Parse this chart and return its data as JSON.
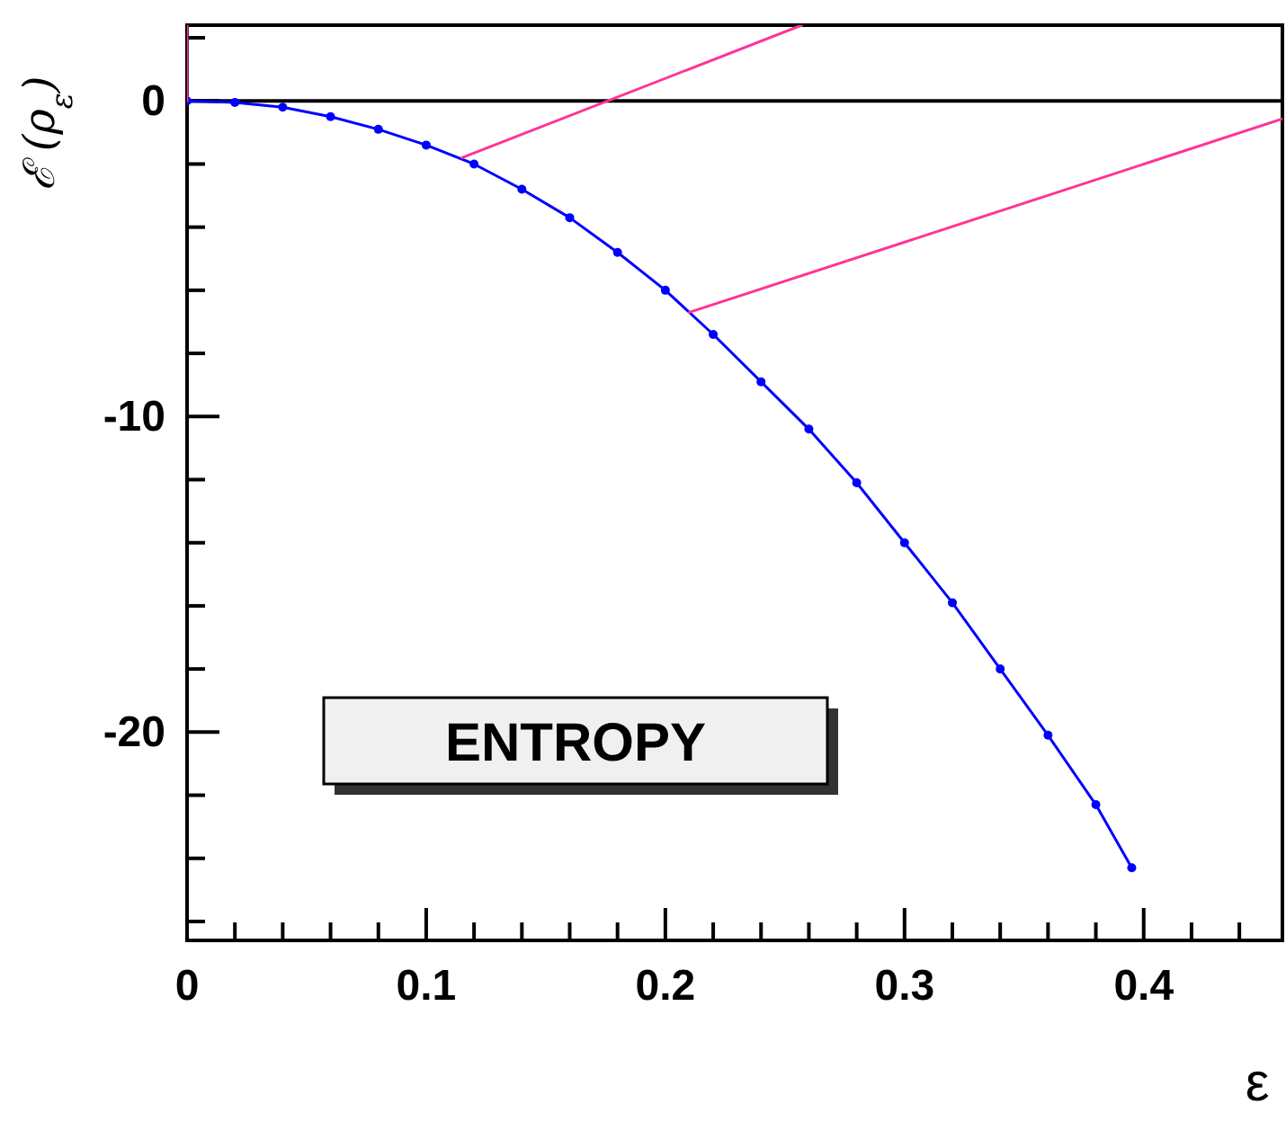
{
  "chart_data": {
    "type": "line",
    "xlabel": "ε",
    "ylabel": "ℰ (ρ$_{ε}$)",
    "annotations": [
      {
        "text": "ENTROPY"
      }
    ],
    "xlim": [
      0,
      0.458
    ],
    "ylim": [
      -26.6,
      2.4
    ],
    "xticks": [
      0,
      {
        "value": 0.02,
        "label": null
      },
      {
        "value": 0.04,
        "label": null
      },
      {
        "value": 0.06,
        "label": null
      },
      {
        "value": 0.08,
        "label": null
      },
      0.1,
      {
        "value": 0.12,
        "label": null
      },
      {
        "value": 0.14,
        "label": null
      },
      {
        "value": 0.16,
        "label": null
      },
      {
        "value": 0.18,
        "label": null
      },
      0.2,
      {
        "value": 0.22,
        "label": null
      },
      {
        "value": 0.24,
        "label": null
      },
      {
        "value": 0.26,
        "label": null
      },
      {
        "value": 0.28,
        "label": null
      },
      0.3,
      {
        "value": 0.32,
        "label": null
      },
      {
        "value": 0.34,
        "label": null
      },
      {
        "value": 0.36,
        "label": null
      },
      {
        "value": 0.38,
        "label": null
      },
      0.4,
      {
        "value": 0.42,
        "label": null
      },
      {
        "value": 0.44,
        "label": null
      }
    ],
    "yticks": [
      {
        "value": -26,
        "label": null
      },
      {
        "value": -24,
        "label": null
      },
      {
        "value": -22,
        "label": null
      },
      -20,
      {
        "value": -18,
        "label": null
      },
      {
        "value": -16,
        "label": null
      },
      {
        "value": -14,
        "label": null
      },
      {
        "value": -12,
        "label": null
      },
      -10,
      {
        "value": -8,
        "label": null
      },
      {
        "value": -6,
        "label": null
      },
      {
        "value": -4,
        "label": null
      },
      {
        "value": -2,
        "label": null
      },
      0,
      {
        "value": 2,
        "label": null
      }
    ],
    "ref_lines": [
      {
        "axis": "y",
        "value": 0,
        "color": "#000000"
      }
    ],
    "series": [
      {
        "color": "#0000ff",
        "marker": "circle",
        "x": [
          0,
          0.02,
          0.04,
          0.06,
          0.08,
          0.1,
          0.12,
          0.14,
          0.16,
          0.18,
          0.2,
          0.22,
          0.24,
          0.26,
          0.28,
          0.3,
          0.32,
          0.34,
          0.36,
          0.38,
          0.395
        ],
        "values": [
          0,
          -0.05,
          -0.2,
          -0.5,
          -0.9,
          -1.4,
          -2.0,
          -2.8,
          -3.7,
          -4.8,
          -6.0,
          -7.4,
          -8.9,
          -10.4,
          -12.1,
          -14.0,
          -15.9,
          -18.0,
          -20.1,
          -22.3,
          -24.3
        ]
      },
      {
        "color": "#ff3399",
        "marker": "none",
        "x": [
          0,
          0
        ],
        "values": [
          0,
          2.4
        ]
      },
      {
        "color": "#ff3399",
        "marker": "none",
        "x": [
          0.115,
          0.257
        ],
        "values": [
          -1.8,
          2.4
        ]
      },
      {
        "color": "#ff3399",
        "marker": "none",
        "x": [
          0.21,
          0.458
        ],
        "values": [
          -6.7,
          -0.57
        ]
      }
    ]
  }
}
